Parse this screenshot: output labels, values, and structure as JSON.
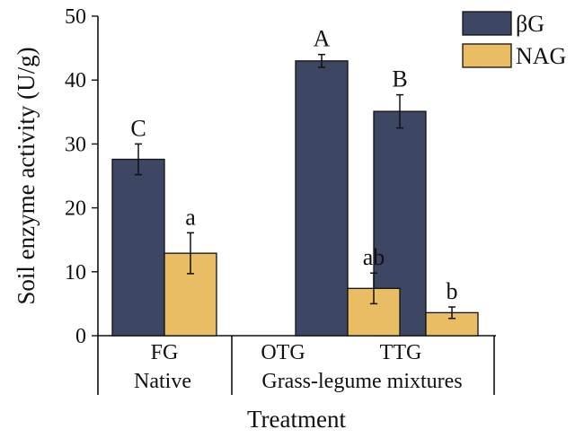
{
  "chart_data": {
    "type": "bar",
    "ylabel": "Soil enzyme activity (U/g)",
    "xlabel": "Treatment",
    "ylim": [
      0,
      50
    ],
    "yticks": [
      0,
      10,
      20,
      30,
      40,
      50
    ],
    "legend_position": "top-right",
    "categories": [
      "FG",
      "OTG",
      "TTG"
    ],
    "groups": [
      {
        "label": "Native",
        "categories": [
          "FG"
        ]
      },
      {
        "label": "Grass-legume mixtures",
        "categories": [
          "OTG",
          "TTG"
        ]
      }
    ],
    "series": [
      {
        "name": "βG",
        "color": "#3d4764",
        "values": [
          27.6,
          43.0,
          35.1
        ],
        "errors": [
          2.4,
          1.0,
          2.6
        ],
        "letters": [
          "C",
          "A",
          "B"
        ]
      },
      {
        "name": "NAG",
        "color": "#e9bd63",
        "values": [
          12.9,
          7.4,
          3.6
        ],
        "errors": [
          3.2,
          2.4,
          0.9
        ],
        "letters": [
          "a",
          "ab",
          "b"
        ]
      }
    ]
  }
}
